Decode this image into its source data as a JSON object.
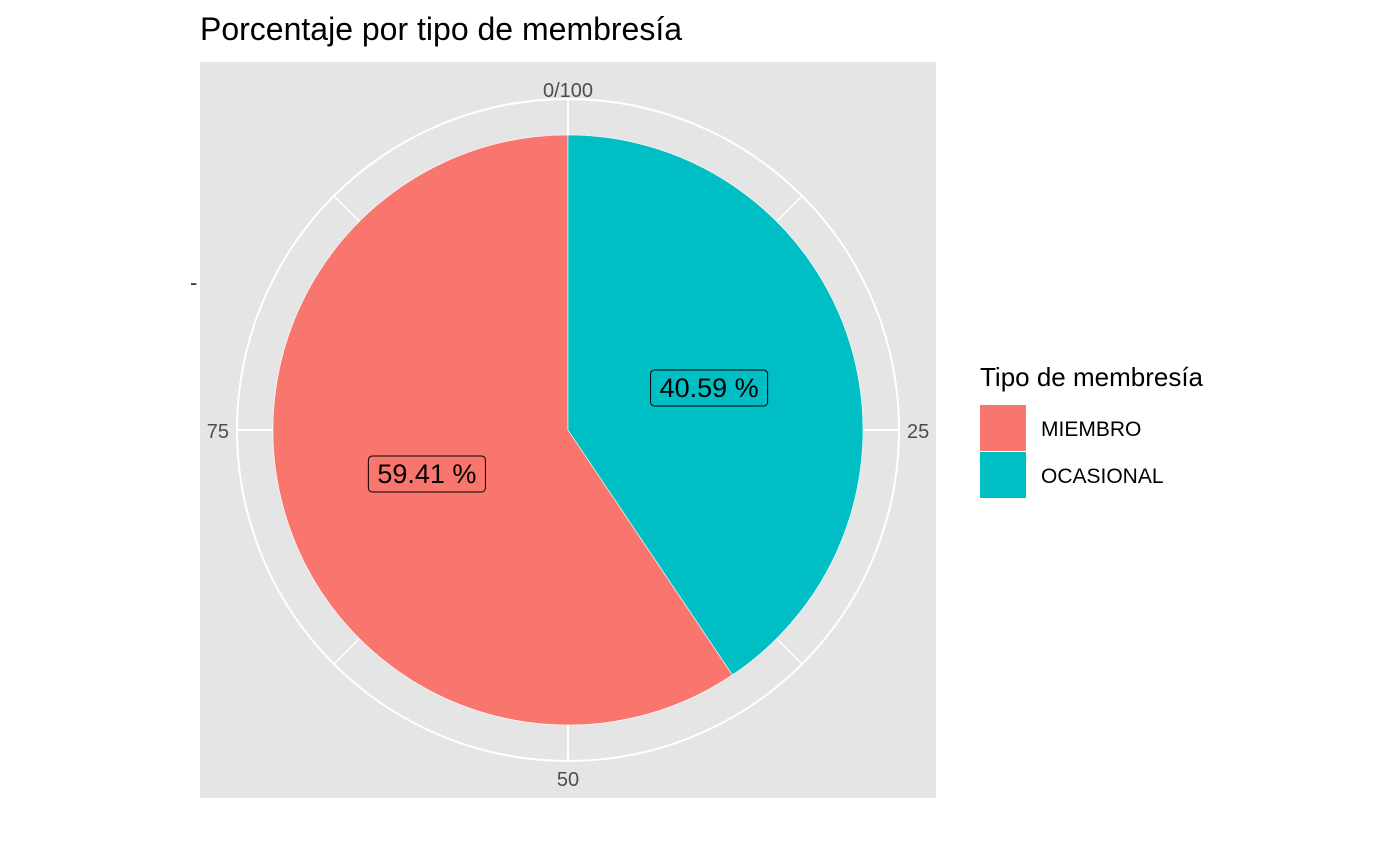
{
  "chart_data": {
    "type": "pie",
    "title": "Porcentaje por tipo de membresía",
    "categories": [
      "MIEMBRO",
      "OCASIONAL"
    ],
    "values": [
      59.41,
      40.59
    ],
    "labels": [
      "59.41 %",
      "40.59 %"
    ],
    "colors": [
      "#F8766D",
      "#00BFC4"
    ],
    "theta_ticks": [
      {
        "value": 0,
        "label": "0/100"
      },
      {
        "value": 25,
        "label": "25"
      },
      {
        "value": 50,
        "label": "50"
      },
      {
        "value": 75,
        "label": "75"
      }
    ],
    "y_axis_tick": "-",
    "legend": {
      "title": "Tipo de membresía",
      "position": "right",
      "items": [
        "MIEMBRO",
        "OCASIONAL"
      ]
    },
    "panel_background": "#E5E5E5",
    "grid": true
  }
}
